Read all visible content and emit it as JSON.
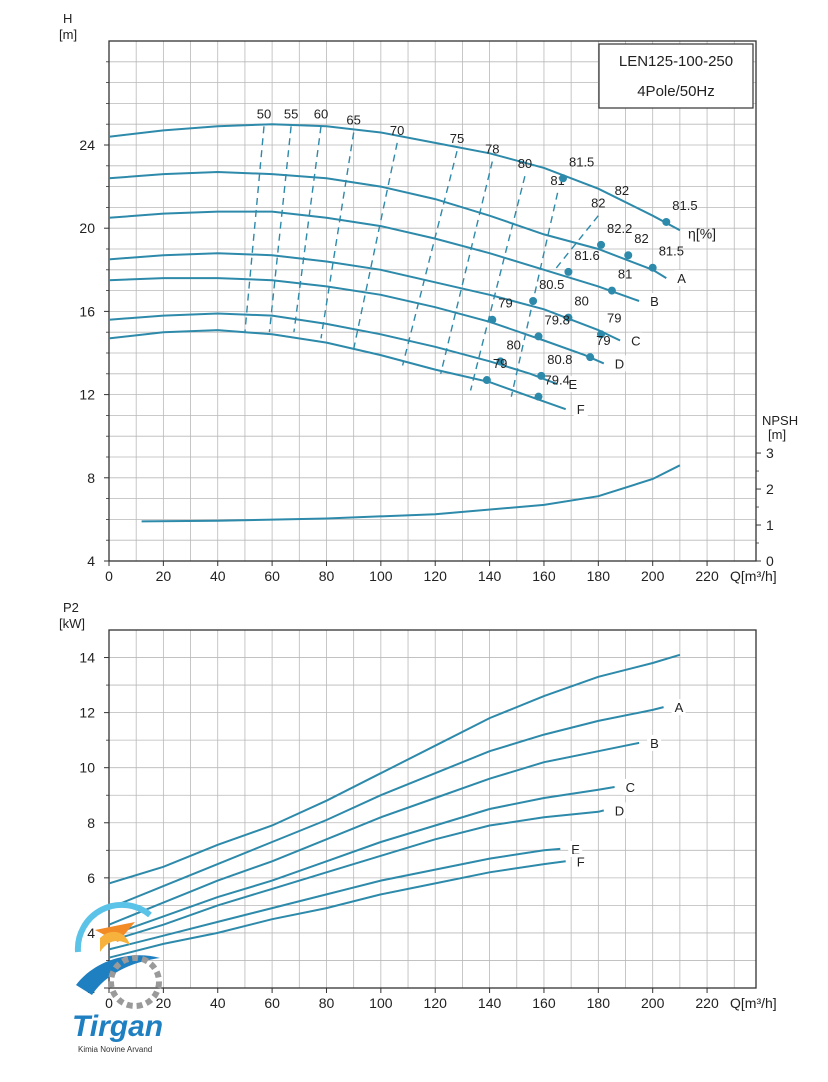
{
  "infobox": {
    "model": "LEN125-100-250",
    "speed": "4Pole/50Hz"
  },
  "logo": {
    "brand": "Tirgan",
    "tagline": "Kimia Novine Arvand"
  },
  "chart_data": [
    {
      "type": "line",
      "name": "head",
      "ylabel_top": "H",
      "ylabel_unit": "[m]",
      "xlabel": "Q[m³/h]",
      "xlim": [
        0,
        238
      ],
      "ylim": [
        4,
        29
      ],
      "xticks": [
        0,
        20,
        40,
        60,
        80,
        100,
        120,
        140,
        160,
        180,
        200,
        220
      ],
      "yticks": [
        4,
        8,
        12,
        16,
        20,
        24
      ],
      "grid": true,
      "series": [
        {
          "name": "",
          "points": [
            [
              0,
              24.4
            ],
            [
              20,
              24.7
            ],
            [
              40,
              24.9
            ],
            [
              60,
              25.0
            ],
            [
              80,
              24.9
            ],
            [
              100,
              24.6
            ],
            [
              120,
              24.1
            ],
            [
              140,
              23.6
            ],
            [
              160,
              22.9
            ],
            [
              180,
              21.9
            ],
            [
              200,
              20.6
            ],
            [
              210,
              19.9
            ]
          ],
          "label": ""
        },
        {
          "name": "A",
          "points": [
            [
              0,
              22.4
            ],
            [
              20,
              22.6
            ],
            [
              40,
              22.7
            ],
            [
              60,
              22.6
            ],
            [
              80,
              22.4
            ],
            [
              100,
              22.0
            ],
            [
              120,
              21.4
            ],
            [
              140,
              20.6
            ],
            [
              160,
              19.7
            ],
            [
              180,
              19.0
            ],
            [
              200,
              18.0
            ],
            [
              205,
              17.6
            ]
          ],
          "label": "A"
        },
        {
          "name": "B",
          "points": [
            [
              0,
              20.5
            ],
            [
              20,
              20.7
            ],
            [
              40,
              20.8
            ],
            [
              60,
              20.8
            ],
            [
              80,
              20.5
            ],
            [
              100,
              20.1
            ],
            [
              120,
              19.5
            ],
            [
              140,
              18.8
            ],
            [
              160,
              18.0
            ],
            [
              180,
              17.2
            ],
            [
              195,
              16.5
            ]
          ],
          "label": "B"
        },
        {
          "name": "C",
          "points": [
            [
              0,
              18.5
            ],
            [
              20,
              18.7
            ],
            [
              40,
              18.8
            ],
            [
              60,
              18.7
            ],
            [
              80,
              18.4
            ],
            [
              100,
              18.0
            ],
            [
              120,
              17.4
            ],
            [
              140,
              16.8
            ],
            [
              160,
              16.1
            ],
            [
              180,
              15.1
            ],
            [
              188,
              14.6
            ]
          ],
          "label": "C"
        },
        {
          "name": "D",
          "points": [
            [
              0,
              17.5
            ],
            [
              20,
              17.6
            ],
            [
              40,
              17.6
            ],
            [
              60,
              17.5
            ],
            [
              80,
              17.2
            ],
            [
              100,
              16.8
            ],
            [
              120,
              16.2
            ],
            [
              140,
              15.5
            ],
            [
              160,
              14.6
            ],
            [
              175,
              13.9
            ],
            [
              182,
              13.5
            ]
          ],
          "label": "D"
        },
        {
          "name": "E",
          "points": [
            [
              0,
              15.6
            ],
            [
              20,
              15.8
            ],
            [
              40,
              15.9
            ],
            [
              60,
              15.8
            ],
            [
              80,
              15.4
            ],
            [
              100,
              14.9
            ],
            [
              120,
              14.3
            ],
            [
              140,
              13.6
            ],
            [
              155,
              13.0
            ],
            [
              165,
              12.5
            ]
          ],
          "label": "E"
        },
        {
          "name": "F",
          "points": [
            [
              0,
              14.7
            ],
            [
              20,
              15.0
            ],
            [
              40,
              15.1
            ],
            [
              60,
              14.9
            ],
            [
              80,
              14.5
            ],
            [
              100,
              13.9
            ],
            [
              120,
              13.2
            ],
            [
              140,
              12.6
            ],
            [
              155,
              11.9
            ],
            [
              168,
              11.3
            ]
          ],
          "label": "F"
        }
      ],
      "efficiency_label": "η[%]",
      "iso_efficiency_lines": [
        {
          "label": "50",
          "points": [
            [
              57,
              24.9
            ],
            [
              50,
              15.0
            ]
          ]
        },
        {
          "label": "55",
          "points": [
            [
              67,
              24.9
            ],
            [
              59,
              15.0
            ]
          ]
        },
        {
          "label": "60",
          "points": [
            [
              78,
              24.9
            ],
            [
              68,
              15.0
            ]
          ]
        },
        {
          "label": "65",
          "points": [
            [
              90,
              24.6
            ],
            [
              78,
              14.7
            ]
          ]
        },
        {
          "label": "70",
          "points": [
            [
              106,
              24.1
            ],
            [
              90,
              14.2
            ]
          ]
        },
        {
          "label": "75",
          "points": [
            [
              128,
              23.7
            ],
            [
              108,
              13.4
            ]
          ]
        },
        {
          "label": "78",
          "points": [
            [
              141,
              23.2
            ],
            [
              122,
              13.0
            ]
          ]
        },
        {
          "label": "80",
          "points": [
            [
              153,
              22.5
            ],
            [
              133,
              12.2
            ]
          ]
        },
        {
          "label": "81",
          "points": [
            [
              165,
              21.7
            ],
            [
              148,
              11.9
            ]
          ]
        },
        {
          "label": "82",
          "points": [
            [
              180,
              20.6
            ],
            [
              164,
              18.0
            ]
          ]
        }
      ],
      "efficiency_points": [
        {
          "series": "",
          "points": [
            {
              "x": 167,
              "y": 22.4,
              "label": "81.5"
            },
            {
              "x": 205,
              "y": 20.3,
              "label": "81.5"
            }
          ],
          "extra_labels": [
            "82"
          ]
        },
        {
          "series": "A",
          "points": [
            {
              "x": 181,
              "y": 19.2,
              "label": "82.2"
            },
            {
              "x": 191,
              "y": 18.7,
              "label": "82"
            },
            {
              "x": 200,
              "y": 18.1,
              "label": "81.5"
            }
          ]
        },
        {
          "series": "B",
          "points": [
            {
              "x": 169,
              "y": 17.9,
              "label": "81.6"
            },
            {
              "x": 185,
              "y": 17.0,
              "label": "81"
            }
          ]
        },
        {
          "series": "C",
          "points": [
            {
              "x": 156,
              "y": 16.5,
              "label": "80.5"
            },
            {
              "x": 169,
              "y": 15.7,
              "label": "80"
            },
            {
              "x": 181,
              "y": 14.9,
              "label": "79"
            }
          ]
        },
        {
          "series": "D",
          "points": [
            {
              "x": 141,
              "y": 15.6,
              "label": "79"
            },
            {
              "x": 158,
              "y": 14.8,
              "label": "79.8"
            },
            {
              "x": 177,
              "y": 13.8,
              "label": "79"
            }
          ]
        },
        {
          "series": "E",
          "points": [
            {
              "x": 144,
              "y": 13.6,
              "label": "80"
            },
            {
              "x": 159,
              "y": 12.9,
              "label": "80.8"
            }
          ]
        },
        {
          "series": "F",
          "points": [
            {
              "x": 139,
              "y": 12.7,
              "label": "79"
            },
            {
              "x": 158,
              "y": 11.9,
              "label": "79.4"
            }
          ]
        }
      ],
      "npsh": {
        "axis_label": "NPSH",
        "axis_unit": "[m]",
        "yticks": [
          0,
          1,
          2,
          3
        ],
        "series": [
          [
            12,
            1.1
          ],
          [
            40,
            1.12
          ],
          [
            80,
            1.18
          ],
          [
            120,
            1.3
          ],
          [
            160,
            1.56
          ],
          [
            180,
            1.8
          ],
          [
            200,
            2.28
          ],
          [
            210,
            2.66
          ]
        ]
      }
    },
    {
      "type": "line",
      "name": "power",
      "ylabel_top": "P2",
      "ylabel_unit": "[kW]",
      "xlabel": "Q[m³/h]",
      "xlim": [
        0,
        238
      ],
      "ylim": [
        2,
        15
      ],
      "xticks": [
        0,
        20,
        40,
        60,
        80,
        100,
        120,
        140,
        160,
        180,
        200,
        220
      ],
      "yticks": [
        2,
        4,
        6,
        8,
        10,
        12,
        14
      ],
      "grid": true,
      "series": [
        {
          "name": "",
          "points": [
            [
              0,
              5.8
            ],
            [
              20,
              6.4
            ],
            [
              40,
              7.2
            ],
            [
              60,
              7.9
            ],
            [
              80,
              8.8
            ],
            [
              100,
              9.8
            ],
            [
              120,
              10.8
            ],
            [
              140,
              11.8
            ],
            [
              160,
              12.6
            ],
            [
              180,
              13.3
            ],
            [
              200,
              13.8
            ],
            [
              210,
              14.1
            ]
          ],
          "label": ""
        },
        {
          "name": "A",
          "points": [
            [
              0,
              4.9
            ],
            [
              20,
              5.7
            ],
            [
              40,
              6.5
            ],
            [
              60,
              7.3
            ],
            [
              80,
              8.1
            ],
            [
              100,
              9.0
            ],
            [
              120,
              9.8
            ],
            [
              140,
              10.6
            ],
            [
              160,
              11.2
            ],
            [
              180,
              11.7
            ],
            [
              200,
              12.1
            ],
            [
              204,
              12.2
            ]
          ],
          "label": "A"
        },
        {
          "name": "B",
          "points": [
            [
              0,
              4.3
            ],
            [
              20,
              5.1
            ],
            [
              40,
              5.9
            ],
            [
              60,
              6.6
            ],
            [
              80,
              7.4
            ],
            [
              100,
              8.2
            ],
            [
              120,
              8.9
            ],
            [
              140,
              9.6
            ],
            [
              160,
              10.2
            ],
            [
              180,
              10.6
            ],
            [
              195,
              10.9
            ]
          ],
          "label": "B"
        },
        {
          "name": "C",
          "points": [
            [
              0,
              3.9
            ],
            [
              20,
              4.6
            ],
            [
              40,
              5.3
            ],
            [
              60,
              5.9
            ],
            [
              80,
              6.6
            ],
            [
              100,
              7.3
            ],
            [
              120,
              7.9
            ],
            [
              140,
              8.5
            ],
            [
              160,
              8.9
            ],
            [
              180,
              9.2
            ],
            [
              186,
              9.3
            ]
          ],
          "label": "C"
        },
        {
          "name": "D",
          "points": [
            [
              0,
              3.7
            ],
            [
              20,
              4.3
            ],
            [
              40,
              5.0
            ],
            [
              60,
              5.6
            ],
            [
              80,
              6.2
            ],
            [
              100,
              6.8
            ],
            [
              120,
              7.4
            ],
            [
              140,
              7.9
            ],
            [
              160,
              8.2
            ],
            [
              180,
              8.4
            ],
            [
              182,
              8.45
            ]
          ],
          "label": "D"
        },
        {
          "name": "E",
          "points": [
            [
              0,
              3.4
            ],
            [
              20,
              3.9
            ],
            [
              40,
              4.4
            ],
            [
              60,
              4.9
            ],
            [
              80,
              5.4
            ],
            [
              100,
              5.9
            ],
            [
              120,
              6.3
            ],
            [
              140,
              6.7
            ],
            [
              160,
              7.0
            ],
            [
              166,
              7.05
            ]
          ],
          "label": "E"
        },
        {
          "name": "F",
          "points": [
            [
              0,
              3.1
            ],
            [
              20,
              3.6
            ],
            [
              40,
              4.0
            ],
            [
              60,
              4.5
            ],
            [
              80,
              4.9
            ],
            [
              100,
              5.4
            ],
            [
              120,
              5.8
            ],
            [
              140,
              6.2
            ],
            [
              160,
              6.5
            ],
            [
              168,
              6.6
            ]
          ],
          "label": "F"
        }
      ]
    }
  ],
  "colors": {
    "curve": "#2e8aaa",
    "grid": "#b9b9b9",
    "frame": "#333333"
  }
}
